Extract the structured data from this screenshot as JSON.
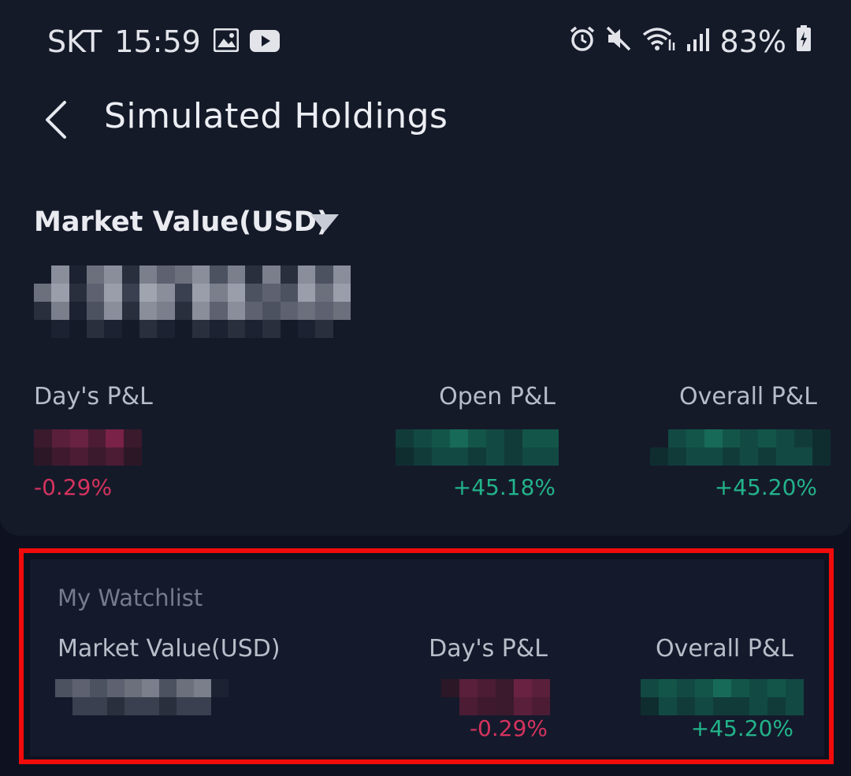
{
  "status_bar": {
    "carrier": "SKT",
    "time": "15:59",
    "battery": "83%",
    "icons": [
      "image-icon",
      "youtube-icon",
      "alarm-icon",
      "mute-icon",
      "wifi-icon",
      "signal-icon",
      "battery-icon"
    ]
  },
  "header": {
    "title": "Simulated Holdings",
    "back_icon": "chevron-left-icon"
  },
  "summary": {
    "market_value_label": "Market Value(USD)",
    "dropdown_icon": "caret-down-icon",
    "market_value": "hidden (pixelated)",
    "days_pl_label": "Day's P&L",
    "days_pl_pct": "-0.29%",
    "open_pl_label": "Open P&L",
    "open_pl_pct": "+45.18%",
    "overall_pl_label": "Overall P&L",
    "overall_pl_pct": "+45.20%"
  },
  "watchlist": {
    "title": "My Watchlist",
    "market_value_label": "Market Value(USD)",
    "days_pl_label": "Day's P&L",
    "days_pl_pct": "-0.29%",
    "overall_pl_label": "Overall P&L",
    "overall_pl_pct": "+45.20%"
  },
  "colors": {
    "background": "#0e1220",
    "panel": "#151a29",
    "negative": "#d4335e",
    "positive": "#22b38a",
    "highlight_frame": "#f20b0b"
  }
}
